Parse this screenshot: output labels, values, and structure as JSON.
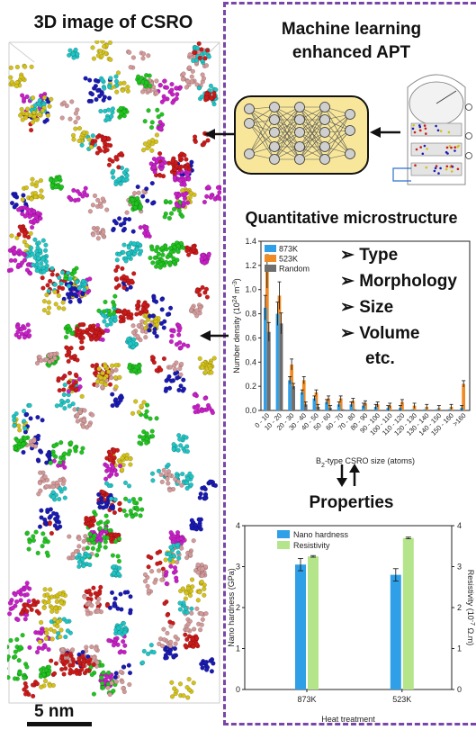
{
  "left_panel": {
    "title": "3D image of CSRO",
    "scale_bar_label": "5 nm"
  },
  "right_panel": {
    "ml_title_line1": "Machine learning",
    "ml_title_line2": "enhanced APT",
    "quant_title": "Quantitative microstructure",
    "properties_title": "Properties",
    "bullets": [
      {
        "label": "Type"
      },
      {
        "label": "Morphology"
      },
      {
        "label": "Size"
      },
      {
        "label": "Volume"
      },
      {
        "label": "etc."
      }
    ]
  },
  "colors": {
    "frame_purple": "#7a45a8",
    "series_873K": "#2f9fe8",
    "series_523K": "#f08a24",
    "series_random": "#6e6e6e",
    "nano_hardness": "#2f9fe8",
    "resistivity": "#b5e58a",
    "nn_box_fill": "#f8e79a",
    "cluster_colors": [
      "#cc1a1a",
      "#1a1ab3",
      "#20c420",
      "#d4c21a",
      "#c81fc8",
      "#20c4c4",
      "#d49a9a",
      "#111111"
    ]
  },
  "chart_data": [
    {
      "type": "bar",
      "title": "",
      "xlabel": "B2-type CSRO size (atoms)",
      "ylabel": "Number density (10^24 m^-3)",
      "ylim": [
        0,
        1.4
      ],
      "yticks": [
        "0.0",
        "0.2",
        "0.4",
        "0.6",
        "0.8",
        "1.0",
        "1.2",
        "1.4"
      ],
      "legend_position": "top-left",
      "categories": [
        "0 - 10",
        "10 - 20",
        "20 - 30",
        "30 - 40",
        "40 - 50",
        "50 - 60",
        "60 - 70",
        "70 - 80",
        "80 - 90",
        "90 - 100",
        "100 - 110",
        "110 - 120",
        "120 - 130",
        "130 - 140",
        "140 - 150",
        "150 - 160",
        ">160"
      ],
      "series": [
        {
          "name": "873K",
          "values": [
            0.85,
            0.8,
            0.25,
            0.15,
            0.1,
            0.07,
            0.05,
            0.05,
            0.04,
            0.03,
            0.02,
            0.02,
            0.01,
            0.01,
            0.01,
            0.01,
            0.02
          ]
        },
        {
          "name": "523K",
          "values": [
            1.15,
            0.95,
            0.38,
            0.25,
            0.15,
            0.1,
            0.1,
            0.08,
            0.06,
            0.05,
            0.04,
            0.07,
            0.04,
            0.03,
            0.02,
            0.03,
            0.22
          ]
        },
        {
          "name": "Random",
          "values": [
            0.65,
            0.72,
            0.2,
            0.05,
            0.03,
            0.02,
            0.01,
            0.01,
            0.0,
            0.0,
            0.0,
            0.0,
            0.0,
            0.0,
            0.0,
            0.0,
            0.0
          ]
        }
      ]
    },
    {
      "type": "bar",
      "title": "",
      "xlabel": "Heat treatment",
      "ylabel": "Nano hardness (GPa)",
      "ylabel_right": "Resistivity (10^-7 Ω.m)",
      "ylim": [
        0,
        4
      ],
      "ylim_right": [
        0,
        4
      ],
      "yticks": [
        "0",
        "1",
        "2",
        "3",
        "4"
      ],
      "legend_position": "top-left",
      "categories": [
        "873K",
        "523K"
      ],
      "series": [
        {
          "name": "Nano hardness",
          "values": [
            3.05,
            2.8
          ],
          "axis": "left"
        },
        {
          "name": "Resistivity",
          "values": [
            3.25,
            3.7
          ],
          "axis": "right"
        }
      ]
    }
  ]
}
